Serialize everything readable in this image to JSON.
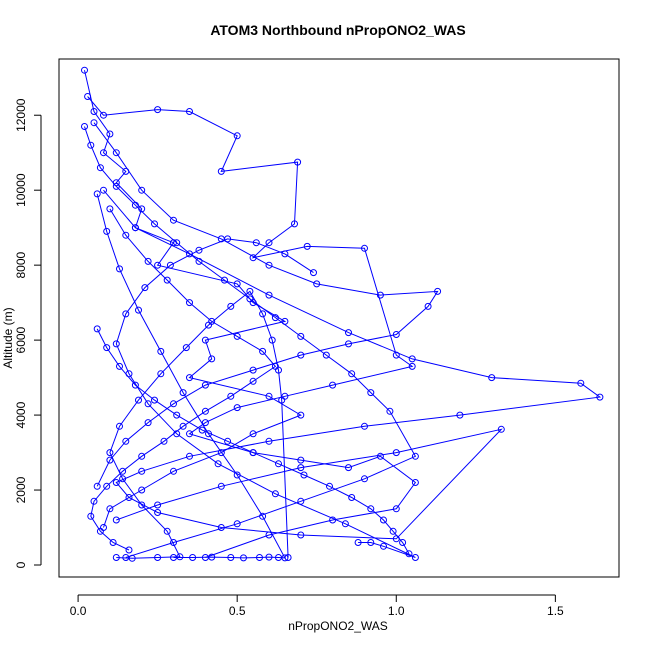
{
  "chart_data": {
    "type": "scatter",
    "title": "ATOM3 Northbound nPropONO2_WAS",
    "xlabel": "nPropONO2_WAS",
    "ylabel": "Altitude (m)",
    "xlim": [
      -0.06,
      1.7
    ],
    "ylim": [
      -320,
      13500
    ],
    "x_ticks": [
      0.0,
      0.5,
      1.0,
      1.5
    ],
    "x_tick_labels": [
      "0.0",
      "0.5",
      "1.0",
      "1.5"
    ],
    "y_ticks": [
      0,
      2000,
      4000,
      6000,
      8000,
      10000,
      12000
    ],
    "y_tick_labels": [
      "0",
      "2000",
      "4000",
      "6000",
      "8000",
      "10000",
      "12000"
    ],
    "grid": false,
    "legend": "none",
    "series_color": "#0000ff",
    "marker": "open-circle",
    "connected": true,
    "series": [
      {
        "x": [
          0.02,
          0.05,
          0.1,
          0.08,
          0.15,
          0.12,
          0.2,
          0.18,
          0.3,
          0.25,
          0.5,
          0.55,
          0.65,
          0.4,
          0.42,
          0.35,
          0.6,
          0.7,
          0.55,
          0.45,
          0.3,
          0.2,
          0.1,
          0.08
        ],
        "y": [
          13200,
          12100,
          11500,
          11000,
          10500,
          10200,
          9500,
          9000,
          8600,
          8000,
          7500,
          7000,
          6500,
          6000,
          5500,
          5000,
          4500,
          4000,
          3500,
          3000,
          2500,
          2000,
          1500,
          1000
        ]
      },
      {
        "x": [
          0.03,
          0.08,
          0.25,
          0.35,
          0.5,
          0.45,
          0.69,
          0.68,
          0.6,
          0.55,
          0.72,
          0.9,
          1.0,
          1.05,
          0.8,
          0.65,
          0.5,
          0.4,
          0.35,
          0.55,
          0.7,
          0.85,
          0.95,
          1.06,
          1.0,
          0.8,
          0.6,
          0.4
        ],
        "y": [
          12500,
          12000,
          12150,
          12100,
          11450,
          10500,
          10750,
          9100,
          8600,
          8200,
          8500,
          8450,
          5600,
          5300,
          4800,
          4500,
          4200,
          3800,
          3500,
          3000,
          2800,
          2600,
          2900,
          2200,
          1500,
          1200,
          800,
          200
        ]
      },
      {
        "x": [
          0.05,
          0.12,
          0.2,
          0.3,
          0.45,
          0.6,
          0.75,
          0.95,
          1.13,
          1.1,
          1.0,
          0.85,
          0.7,
          0.55,
          0.4,
          0.3,
          0.22,
          0.15,
          0.1,
          0.06
        ],
        "y": [
          11800,
          11000,
          10000,
          9200,
          8700,
          8000,
          7500,
          7200,
          7300,
          6900,
          6150,
          5900,
          5600,
          5200,
          4800,
          4300,
          3800,
          3300,
          2800,
          2100
        ]
      },
      {
        "x": [
          0.08,
          0.18,
          0.35,
          0.6,
          0.85,
          1.05,
          1.3,
          1.58,
          1.64,
          1.2,
          0.9,
          0.6,
          0.35,
          0.2,
          0.12,
          0.16,
          0.25,
          0.45,
          0.7,
          1.0,
          1.33,
          1.0,
          0.7,
          0.45,
          0.25,
          0.12
        ],
        "y": [
          10000,
          9000,
          8300,
          7200,
          6200,
          5500,
          5000,
          4850,
          4480,
          4000,
          3700,
          3300,
          2900,
          2500,
          2200,
          1800,
          1400,
          1000,
          800,
          700,
          3620,
          3000,
          2600,
          2100,
          1600,
          1200
        ]
      },
      {
        "x": [
          0.1,
          0.15,
          0.22,
          0.28,
          0.35,
          0.42,
          0.5,
          0.58,
          0.62,
          0.55,
          0.48,
          0.4,
          0.33,
          0.27,
          0.2,
          0.14,
          0.09,
          0.05,
          0.04,
          0.07,
          0.11,
          0.16
        ],
        "y": [
          9500,
          8800,
          8100,
          7600,
          7000,
          6500,
          6100,
          5700,
          5300,
          4900,
          4500,
          4100,
          3700,
          3300,
          2900,
          2500,
          2100,
          1700,
          1300,
          900,
          600,
          400
        ]
      },
      {
        "x": [
          0.02,
          0.04,
          0.07,
          0.12,
          0.18,
          0.24,
          0.31,
          0.38,
          0.46,
          0.54,
          0.62,
          0.7,
          0.78,
          0.86,
          0.92,
          0.98,
          1.06,
          0.9,
          0.7,
          0.5,
          0.3,
          0.15
        ],
        "y": [
          11700,
          11200,
          10600,
          10100,
          9600,
          9100,
          8600,
          8100,
          7600,
          7100,
          6600,
          6100,
          5600,
          5100,
          4600,
          4100,
          2900,
          2300,
          1700,
          1100,
          600,
          200
        ]
      },
      {
        "x": [
          0.12,
          0.17,
          0.25,
          0.32,
          0.28,
          0.2,
          0.14,
          0.1,
          0.13,
          0.19,
          0.26,
          0.34,
          0.41,
          0.48,
          0.54,
          0.58,
          0.61,
          0.63,
          0.64,
          0.66
        ],
        "y": [
          200,
          180,
          200,
          220,
          900,
          1600,
          2300,
          3000,
          3700,
          4400,
          5100,
          5800,
          6400,
          6900,
          7300,
          6700,
          6000,
          5200,
          4400,
          200
        ]
      },
      {
        "x": [
          0.3,
          0.36,
          0.42,
          0.48,
          0.52,
          0.57,
          0.6,
          0.63,
          0.65,
          0.58,
          0.5,
          0.41,
          0.33,
          0.26,
          0.19,
          0.13,
          0.09,
          0.06
        ],
        "y": [
          200,
          200,
          210,
          200,
          190,
          200,
          210,
          200,
          190,
          1300,
          2400,
          3500,
          4600,
          5700,
          6800,
          7900,
          8900,
          9900
        ]
      },
      {
        "x": [
          0.88,
          0.92,
          0.96,
          1.06,
          0.84,
          0.62,
          0.44,
          0.31,
          0.22,
          0.16,
          0.12,
          0.15,
          0.21,
          0.29,
          0.38,
          0.47,
          0.56,
          0.65,
          0.74
        ],
        "y": [
          600,
          600,
          500,
          200,
          1100,
          1900,
          2700,
          3500,
          4300,
          5100,
          5900,
          6700,
          7400,
          8000,
          8400,
          8700,
          8600,
          8300,
          7800
        ]
      },
      {
        "x": [
          0.06,
          0.09,
          0.13,
          0.18,
          0.24,
          0.31,
          0.39,
          0.47,
          0.55,
          0.63,
          0.71,
          0.79,
          0.86,
          0.92,
          0.96,
          0.99,
          1.02,
          1.04
        ],
        "y": [
          6300,
          5800,
          5300,
          4800,
          4400,
          4000,
          3600,
          3300,
          3000,
          2700,
          2400,
          2100,
          1800,
          1500,
          1200,
          900,
          600,
          300
        ]
      }
    ]
  }
}
